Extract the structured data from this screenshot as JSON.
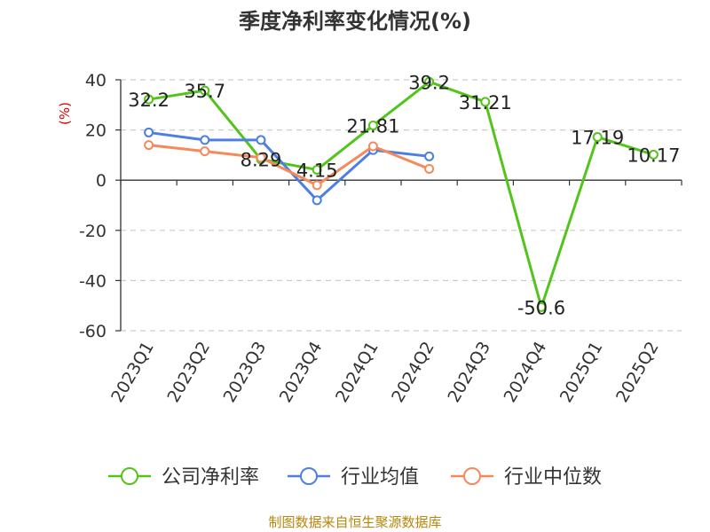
{
  "chart_data": {
    "type": "line",
    "title": "季度净利率变化情况(%)",
    "ylabel": "(%)",
    "xlabel": "",
    "categories": [
      "2023Q1",
      "2023Q2",
      "2023Q3",
      "2023Q4",
      "2024Q1",
      "2024Q2",
      "2024Q3",
      "2024Q4",
      "2025Q1",
      "2025Q2"
    ],
    "ylim": [
      -60,
      40
    ],
    "yticks": [
      40,
      20,
      0,
      -20,
      -40,
      -60
    ],
    "grid": true,
    "legend_position": "bottom",
    "series": [
      {
        "name": "公司净利率",
        "color": "#52c41a",
        "values": [
          32.2,
          35.7,
          8.29,
          4.15,
          21.81,
          39.2,
          31.21,
          -50.6,
          17.19,
          10.17
        ],
        "labels": [
          "32.2",
          "35.7",
          "8.29",
          "4.15",
          "21.81",
          "39.2",
          "31.21",
          "-50.6",
          "17.19",
          "10.17"
        ]
      },
      {
        "name": "行业均值",
        "color": "#4e7fe0",
        "values": [
          19,
          16,
          16,
          -8,
          12,
          9.5,
          null,
          null,
          null,
          null
        ]
      },
      {
        "name": "行业中位数",
        "color": "#f5895a",
        "values": [
          14,
          11.5,
          9,
          -2,
          13.5,
          4.5,
          null,
          null,
          null,
          null
        ]
      }
    ]
  },
  "source": "制图数据来自恒生聚源数据库"
}
